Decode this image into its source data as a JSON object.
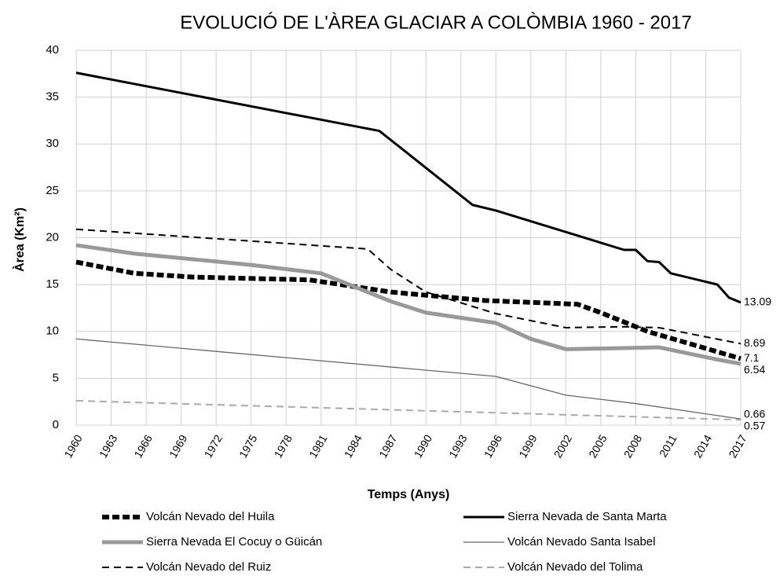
{
  "chart_data": {
    "type": "line",
    "title": "EVOLUCIÓ DE L'ÀREA GLACIAR A COLÒMBIA 1960 - 2017",
    "x_label": "Temps (Anys)",
    "y_label": "Àrea (Km²)",
    "xlim": [
      1960,
      2017
    ],
    "ylim": [
      0,
      40
    ],
    "xticks": [
      1960,
      1963,
      1966,
      1969,
      1972,
      1975,
      1978,
      1981,
      1984,
      1987,
      1990,
      1993,
      1996,
      1999,
      2002,
      2005,
      2008,
      2011,
      2014,
      2017
    ],
    "yticks": [
      0,
      5,
      10,
      15,
      20,
      25,
      30,
      35,
      40
    ],
    "grid": true,
    "legend": "bottom",
    "end_labels": true,
    "series": [
      {
        "name": "Volcán Nevado del Huila",
        "color": "#000000",
        "style": "dashed",
        "width": 6,
        "x": [
          1960,
          1965,
          1970,
          1980,
          1987,
          1995,
          2003,
          2005,
          2009,
          2017
        ],
        "values": [
          17.4,
          16.2,
          15.8,
          15.5,
          14.2,
          13.3,
          12.9,
          12.0,
          10.0,
          7.1
        ]
      },
      {
        "name": "Sierra Nevada de Santa Marta",
        "color": "#000000",
        "style": "solid",
        "width": 3,
        "x": [
          1960,
          1986,
          1994,
          1996,
          2007,
          2008,
          2009,
          2010,
          2011,
          2015,
          2016,
          2017
        ],
        "values": [
          37.6,
          31.4,
          23.5,
          22.9,
          18.7,
          18.7,
          17.5,
          17.4,
          16.2,
          15.0,
          13.6,
          13.09
        ]
      },
      {
        "name": "Sierra Nevada El Cocuy o Güicán",
        "color": "#999999",
        "style": "solid",
        "width": 5,
        "x": [
          1960,
          1965,
          1975,
          1981,
          1987,
          1990,
          1996,
          1999,
          2002,
          2010,
          2015,
          2017
        ],
        "values": [
          19.2,
          18.3,
          17.1,
          16.2,
          13.2,
          12.0,
          10.9,
          9.2,
          8.1,
          8.3,
          7.0,
          6.54
        ]
      },
      {
        "name": "Volcán Nevado Santa Isabel",
        "color": "#666666",
        "style": "solid",
        "width": 1.3,
        "x": [
          1960,
          1996,
          2002,
          2008,
          2017
        ],
        "values": [
          9.2,
          5.2,
          3.2,
          2.3,
          0.66
        ]
      },
      {
        "name": "Volcán Nevado del Ruiz",
        "color": "#000000",
        "style": "dashed",
        "width": 2,
        "x": [
          1960,
          1985,
          1987,
          1990,
          1996,
          2002,
          2007,
          2010,
          2017
        ],
        "values": [
          20.9,
          18.8,
          16.6,
          14.2,
          11.9,
          10.4,
          10.5,
          10.4,
          8.69
        ]
      },
      {
        "name": "Volcán Nevado del Tolima",
        "color": "#aaaaaa",
        "style": "dashed",
        "width": 2,
        "x": [
          1960,
          2017
        ],
        "values": [
          2.6,
          0.57
        ]
      }
    ]
  }
}
